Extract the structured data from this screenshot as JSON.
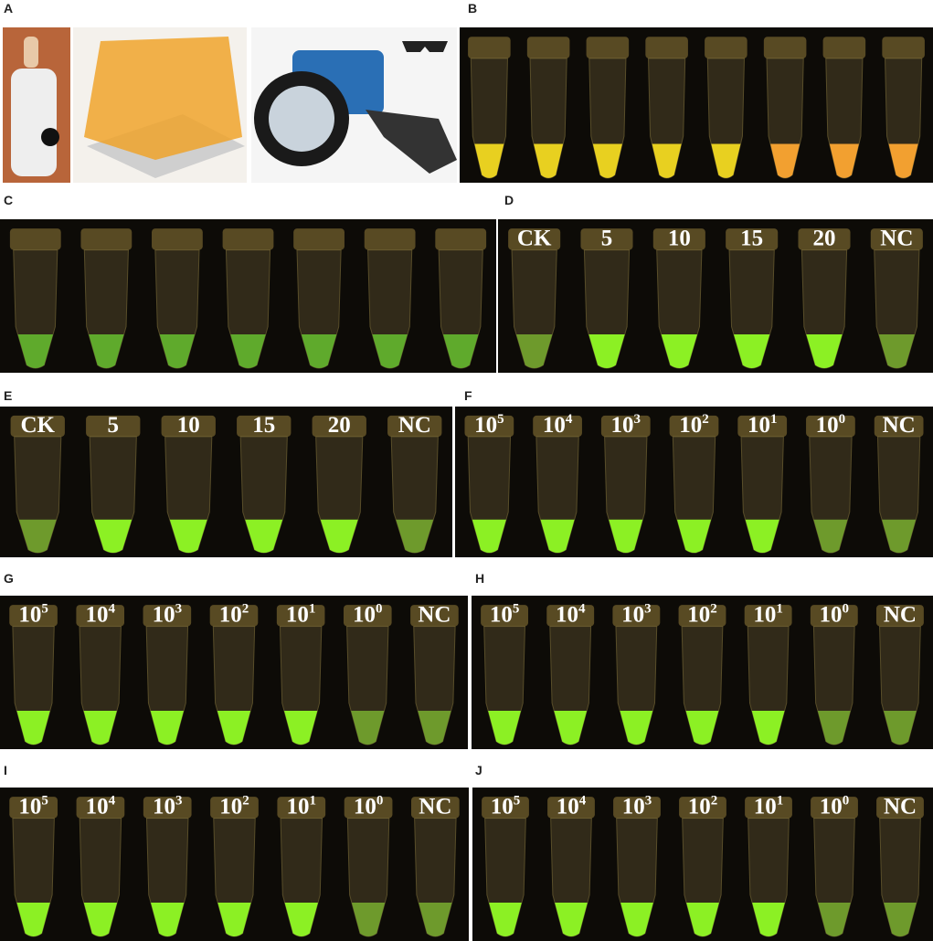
{
  "panels": [
    {
      "label": "A"
    },
    {
      "label": "B"
    },
    {
      "label": "C"
    },
    {
      "label": "D",
      "tubes": [
        "CK",
        "5",
        "10",
        "15",
        "20",
        "NC"
      ]
    },
    {
      "label": "E",
      "tubes": [
        "CK",
        "5",
        "10",
        "15",
        "20",
        "NC"
      ]
    },
    {
      "label": "F",
      "tubes": [
        {
          "base": "10",
          "sup": "5"
        },
        {
          "base": "10",
          "sup": "4"
        },
        {
          "base": "10",
          "sup": "3"
        },
        {
          "base": "10",
          "sup": "2"
        },
        {
          "base": "10",
          "sup": "1"
        },
        {
          "base": "10",
          "sup": "0"
        },
        {
          "base": "NC"
        }
      ]
    },
    {
      "label": "G",
      "tubes": [
        {
          "base": "10",
          "sup": "5"
        },
        {
          "base": "10",
          "sup": "4"
        },
        {
          "base": "10",
          "sup": "3"
        },
        {
          "base": "10",
          "sup": "2"
        },
        {
          "base": "10",
          "sup": "1"
        },
        {
          "base": "10",
          "sup": "0"
        },
        {
          "base": "NC"
        }
      ]
    },
    {
      "label": "H",
      "tubes": [
        {
          "base": "10",
          "sup": "5"
        },
        {
          "base": "10",
          "sup": "4"
        },
        {
          "base": "10",
          "sup": "3"
        },
        {
          "base": "10",
          "sup": "2"
        },
        {
          "base": "10",
          "sup": "1"
        },
        {
          "base": "10",
          "sup": "0"
        },
        {
          "base": "NC"
        }
      ]
    },
    {
      "label": "I",
      "tubes": [
        {
          "base": "10",
          "sup": "5"
        },
        {
          "base": "10",
          "sup": "4"
        },
        {
          "base": "10",
          "sup": "3"
        },
        {
          "base": "10",
          "sup": "2"
        },
        {
          "base": "10",
          "sup": "1"
        },
        {
          "base": "10",
          "sup": "0"
        },
        {
          "base": "NC"
        }
      ]
    },
    {
      "label": "J",
      "tubes": [
        {
          "base": "10",
          "sup": "5"
        },
        {
          "base": "10",
          "sup": "4"
        },
        {
          "base": "10",
          "sup": "3"
        },
        {
          "base": "10",
          "sup": "2"
        },
        {
          "base": "10",
          "sup": "1"
        },
        {
          "base": "10",
          "sup": "0"
        },
        {
          "base": "NC"
        }
      ]
    }
  ]
}
